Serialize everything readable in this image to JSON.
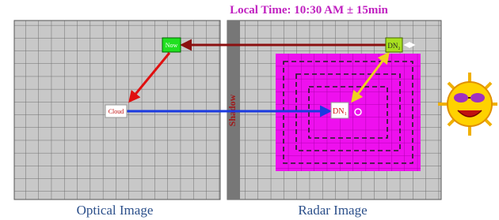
{
  "header": {
    "title": "Local Time: 10:30 AM ± 15min"
  },
  "labels": {
    "now": "Now",
    "cloud": "Cloud",
    "dn1": "DN₁",
    "dn2": "DN₂",
    "shadow": "Shadow"
  },
  "captions": {
    "optical": "Optical Image",
    "radar": "Radar Image"
  }
}
